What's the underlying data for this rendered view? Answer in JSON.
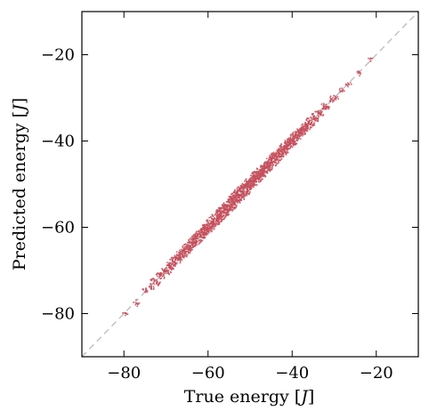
{
  "chart_data": {
    "type": "scatter",
    "title": "",
    "xlabel": "True energy [J]",
    "ylabel": "Predicted energy [J]",
    "xlabel_text": "True energy [",
    "ylabel_text": "Predicted energy [",
    "unit": "J",
    "unit_close": "]",
    "xlim": [
      -90,
      -10
    ],
    "ylim": [
      -90,
      -10
    ],
    "xticks": [
      -80,
      -60,
      -40,
      -20
    ],
    "yticks": [
      -80,
      -60,
      -40,
      -20
    ],
    "xtick_labels": [
      "−80",
      "−60",
      "−40",
      "−20"
    ],
    "ytick_labels": [
      "−80",
      "−60",
      "−40",
      "−20"
    ],
    "grid": false,
    "legend": "none",
    "reference_line": {
      "from": [
        -90,
        -90
      ],
      "to": [
        -10,
        -10
      ],
      "style": "dashed",
      "color": "#bbbbbb"
    },
    "point_color": "#c44e5a",
    "series": [
      {
        "points": {
          "x": [
            -79.6,
            -77.0,
            -74.8,
            -73.5,
            -72.8,
            -72.1,
            -71.5,
            -70.9,
            -70.3,
            -69.7,
            -69.2,
            -68.8,
            -68.3,
            -67.9,
            -67.4,
            -67.0,
            -66.6,
            -66.1,
            -65.7,
            -65.3,
            -64.9,
            -64.4,
            -64.0,
            -63.6,
            -63.2,
            -62.8,
            -62.4,
            -62.0,
            -61.6,
            -61.2,
            -60.8,
            -60.4,
            -60.0,
            -59.6,
            -59.2,
            -58.8,
            -58.4,
            -58.0,
            -57.6,
            -57.2,
            -56.8,
            -56.4,
            -56.0,
            -55.6,
            -55.2,
            -54.8,
            -54.4,
            -54.0,
            -53.6,
            -53.2,
            -52.8,
            -52.4,
            -52.0,
            -51.6,
            -51.2,
            -50.8,
            -50.4,
            -50.0,
            -49.6,
            -49.2,
            -48.8,
            -48.4,
            -48.0,
            -47.6,
            -47.2,
            -46.8,
            -46.4,
            -46.0,
            -45.6,
            -45.2,
            -44.8,
            -44.4,
            -44.0,
            -43.6,
            -43.2,
            -42.8,
            -42.4,
            -42.0,
            -41.6,
            -41.2,
            -40.8,
            -40.4,
            -40.0,
            -39.6,
            -39.2,
            -38.8,
            -38.4,
            -38.0,
            -37.6,
            -37.2,
            -36.8,
            -36.3,
            -35.9,
            -35.4,
            -34.9,
            -34.4,
            -33.8,
            -33.2,
            -32.5,
            -31.7,
            -30.8,
            -29.6,
            -28.2,
            -26.5,
            -24.0,
            -21.5
          ],
          "y": [
            -79.9,
            -77.6,
            -74.5,
            -73.9,
            -72.4,
            -72.6,
            -71.1,
            -71.3,
            -69.9,
            -70.2,
            -68.8,
            -69.1,
            -67.9,
            -68.2,
            -67.0,
            -67.3,
            -66.2,
            -66.5,
            -65.3,
            -65.6,
            -64.5,
            -64.8,
            -63.6,
            -63.9,
            -62.8,
            -63.1,
            -62.0,
            -62.3,
            -61.2,
            -61.5,
            -60.4,
            -60.7,
            -59.6,
            -59.9,
            -58.8,
            -59.1,
            -58.0,
            -58.3,
            -57.2,
            -57.5,
            -56.4,
            -56.7,
            -55.6,
            -55.9,
            -54.8,
            -55.1,
            -54.0,
            -54.3,
            -53.2,
            -53.5,
            -52.4,
            -52.7,
            -51.6,
            -51.9,
            -50.8,
            -51.1,
            -50.0,
            -50.3,
            -49.2,
            -49.5,
            -48.4,
            -48.7,
            -47.6,
            -47.9,
            -46.8,
            -47.1,
            -46.0,
            -46.3,
            -45.2,
            -45.5,
            -44.4,
            -44.7,
            -43.6,
            -43.9,
            -42.8,
            -43.1,
            -42.0,
            -42.3,
            -41.2,
            -41.5,
            -40.4,
            -40.7,
            -39.6,
            -39.9,
            -38.8,
            -39.1,
            -38.0,
            -38.3,
            -37.2,
            -37.5,
            -36.4,
            -36.7,
            -35.5,
            -35.8,
            -34.5,
            -34.8,
            -33.4,
            -33.6,
            -32.1,
            -32.0,
            -30.4,
            -29.9,
            -28.4,
            -26.9,
            -24.2,
            -21.0
          ]
        }
      }
    ]
  }
}
